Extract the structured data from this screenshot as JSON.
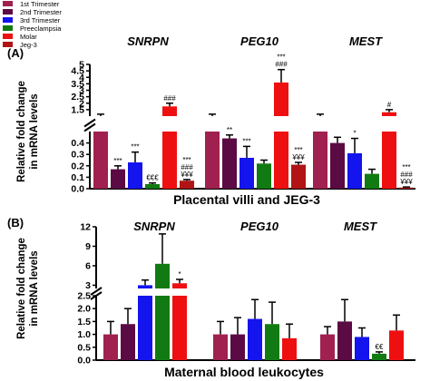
{
  "chart_data": [
    {
      "panel_label": "(A)",
      "type": "bar",
      "xlabel": "Placental villi and JEG-3",
      "ylabel": "Relative fold change in mRNA levels",
      "legend": {
        "placement": "top-left",
        "entries": [
          {
            "name": "1st Trimester",
            "color": "#a0204f"
          },
          {
            "name": "2nd Trimester",
            "color": "#5b0a44"
          },
          {
            "name": "3rd Trimester",
            "color": "#1414ee"
          },
          {
            "name": "Preeclampsia",
            "color": "#127a12"
          },
          {
            "name": "Molar",
            "color": "#ee1010"
          },
          {
            "name": "Jeg-3",
            "color": "#b01414"
          }
        ]
      },
      "axis": {
        "lower": {
          "range": [
            0,
            0.5
          ],
          "ticks": [
            "0.0",
            "0.1",
            "0.2",
            "0.3",
            "0.4"
          ]
        },
        "upper": {
          "range": [
            1.0,
            5.0
          ],
          "ticks": [
            "1.5",
            "2",
            "2.5",
            "3",
            "3.5",
            "4",
            "4.5",
            "5"
          ]
        }
      },
      "groups": [
        {
          "name": "SNRPN",
          "values": [
            1.0,
            0.17,
            0.23,
            0.04,
            1.75,
            0.07
          ],
          "errors": [
            0.15,
            0.03,
            0.09,
            0.01,
            0.25,
            0.01
          ],
          "annotations": [
            "",
            "***",
            "***",
            "€€€",
            "###",
            "***\n###\n¥¥¥"
          ]
        },
        {
          "name": "PEG10",
          "values": [
            1.0,
            0.44,
            0.27,
            0.22,
            3.6,
            0.21
          ],
          "errors": [
            0.15,
            0.03,
            0.1,
            0.03,
            1.0,
            0.02
          ],
          "annotations": [
            "",
            "**",
            "***",
            "",
            "***\n###",
            "***\n¥¥¥"
          ]
        },
        {
          "name": "MEST",
          "values": [
            1.0,
            0.4,
            0.31,
            0.13,
            1.3,
            0.01
          ],
          "errors": [
            0.15,
            0.05,
            0.13,
            0.04,
            0.2,
            0.005
          ],
          "annotations": [
            "",
            "",
            "*",
            "",
            "#",
            "***\n###\n¥¥¥"
          ]
        }
      ]
    },
    {
      "panel_label": "(B)",
      "type": "bar",
      "xlabel": "Maternal blood leukocytes",
      "ylabel": "Relative fold change in mRNA levels",
      "axis": {
        "lower": {
          "range": [
            0,
            2.5
          ],
          "ticks": [
            "0.0",
            "0.5",
            "1.0",
            "1.5",
            "2.0",
            "2.5"
          ]
        },
        "upper": {
          "range": [
            2.5,
            12
          ],
          "ticks": [
            "3",
            "6",
            "9",
            "12"
          ]
        }
      },
      "series_names": [
        "1st Trimester",
        "2nd Trimester",
        "3rd Trimester",
        "Preeclampsia",
        "Molar"
      ],
      "groups": [
        {
          "name": "SNRPN",
          "values": [
            1.0,
            1.4,
            3.0,
            6.3,
            3.3
          ],
          "errors": [
            0.5,
            0.6,
            0.8,
            4.6,
            0.6
          ],
          "annotations": [
            "",
            "",
            "",
            "",
            "*"
          ]
        },
        {
          "name": "PEG10",
          "values": [
            1.0,
            1.0,
            1.6,
            1.4,
            0.85
          ],
          "errors": [
            0.5,
            0.65,
            0.75,
            0.85,
            0.55
          ],
          "annotations": [
            "",
            "",
            "",
            "",
            ""
          ]
        },
        {
          "name": "MEST",
          "values": [
            1.0,
            1.5,
            0.9,
            0.25,
            1.15
          ],
          "errors": [
            0.3,
            0.85,
            0.35,
            0.07,
            0.6
          ],
          "annotations": [
            "",
            "",
            "",
            "€€",
            ""
          ]
        }
      ]
    }
  ]
}
